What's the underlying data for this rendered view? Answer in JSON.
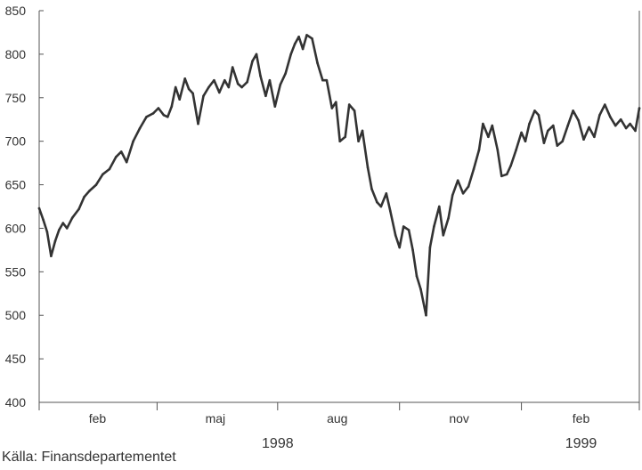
{
  "source_note": "Källa: Finansdepartementet",
  "colors": {
    "line": "#333333",
    "axis": "#555555",
    "text": "#333333"
  },
  "chart_data": {
    "type": "line",
    "title": "",
    "xlabel": "",
    "ylabel": "",
    "ylim": [
      400,
      850
    ],
    "yticks": [
      400,
      450,
      500,
      550,
      600,
      650,
      700,
      750,
      800,
      850
    ],
    "ytick_labels": [
      "400",
      "450",
      "500",
      "550",
      "600",
      "650",
      "700",
      "750",
      "800",
      "850"
    ],
    "xlim": [
      "1998-01-02",
      "1999-03-31"
    ],
    "x_boundaries": [
      "1998-01-02",
      "1998-04-01",
      "1998-07-01",
      "1998-10-01",
      "1999-01-01",
      "1999-03-31"
    ],
    "period_labels": [
      {
        "text": "feb",
        "x": "1998-02-15"
      },
      {
        "text": "maj",
        "x": "1998-05-15"
      },
      {
        "text": "aug",
        "x": "1998-08-15"
      },
      {
        "text": "nov",
        "x": "1998-11-15"
      },
      {
        "text": "feb",
        "x": "1999-02-15"
      }
    ],
    "year_labels": [
      {
        "text": "1998",
        "x": "1998-07-01"
      },
      {
        "text": "1999",
        "x": "1999-02-15"
      }
    ],
    "grid": false,
    "legend": "none",
    "series": [
      {
        "x": [
          "1998-01-02",
          "1998-01-05",
          "1998-01-08",
          "1998-01-11",
          "1998-01-14",
          "1998-01-17",
          "1998-01-20",
          "1998-01-23",
          "1998-01-27",
          "1998-02-01",
          "1998-02-05",
          "1998-02-09",
          "1998-02-14",
          "1998-02-19",
          "1998-02-24",
          "1998-03-01",
          "1998-03-05",
          "1998-03-09",
          "1998-03-14",
          "1998-03-19",
          "1998-03-24",
          "1998-03-29",
          "1998-04-02",
          "1998-04-06",
          "1998-04-09",
          "1998-04-12",
          "1998-04-15",
          "1998-04-18",
          "1998-04-22",
          "1998-04-25",
          "1998-04-28",
          "1998-05-02",
          "1998-05-06",
          "1998-05-10",
          "1998-05-14",
          "1998-05-18",
          "1998-05-22",
          "1998-05-25",
          "1998-05-28",
          "1998-06-01",
          "1998-06-04",
          "1998-06-08",
          "1998-06-12",
          "1998-06-15",
          "1998-06-18",
          "1998-06-22",
          "1998-06-25",
          "1998-06-29",
          "1998-07-03",
          "1998-07-07",
          "1998-07-11",
          "1998-07-14",
          "1998-07-17",
          "1998-07-20",
          "1998-07-23",
          "1998-07-27",
          "1998-07-31",
          "1998-08-04",
          "1998-08-07",
          "1998-08-11",
          "1998-08-14",
          "1998-08-17",
          "1998-08-21",
          "1998-08-24",
          "1998-08-28",
          "1998-08-31",
          "1998-09-03",
          "1998-09-07",
          "1998-09-10",
          "1998-09-14",
          "1998-09-17",
          "1998-09-21",
          "1998-09-24",
          "1998-09-28",
          "1998-10-01",
          "1998-10-04",
          "1998-10-08",
          "1998-10-11",
          "1998-10-14",
          "1998-10-17",
          "1998-10-21",
          "1998-10-24",
          "1998-10-27",
          "1998-10-31",
          "1998-11-03",
          "1998-11-07",
          "1998-11-10",
          "1998-11-14",
          "1998-11-18",
          "1998-11-22",
          "1998-11-26",
          "1998-11-30",
          "1998-12-03",
          "1998-12-07",
          "1998-12-10",
          "1998-12-14",
          "1998-12-17",
          "1998-12-21",
          "1998-12-24",
          "1998-12-28",
          "1999-01-01",
          "1999-01-04",
          "1999-01-07",
          "1999-01-11",
          "1999-01-14",
          "1999-01-18",
          "1999-01-21",
          "1999-01-25",
          "1999-01-28",
          "1999-02-01",
          "1999-02-05",
          "1999-02-09",
          "1999-02-13",
          "1999-02-17",
          "1999-02-21",
          "1999-02-25",
          "1999-03-01",
          "1999-03-05",
          "1999-03-09",
          "1999-03-13",
          "1999-03-17",
          "1999-03-21",
          "1999-03-24",
          "1999-03-28",
          "1999-03-31"
        ],
        "values": [
          623,
          610,
          596,
          568,
          585,
          598,
          606,
          600,
          612,
          622,
          636,
          643,
          650,
          662,
          668,
          682,
          688,
          676,
          700,
          715,
          728,
          732,
          738,
          730,
          728,
          740,
          762,
          748,
          772,
          760,
          755,
          720,
          752,
          762,
          770,
          756,
          770,
          762,
          785,
          766,
          762,
          768,
          792,
          800,
          775,
          752,
          770,
          740,
          765,
          778,
          800,
          812,
          820,
          806,
          822,
          818,
          790,
          770,
          770,
          738,
          745,
          700,
          705,
          742,
          735,
          700,
          712,
          670,
          645,
          630,
          625,
          640,
          620,
          592,
          578,
          602,
          598,
          575,
          545,
          530,
          500,
          578,
          602,
          625,
          592,
          612,
          638,
          655,
          640,
          648,
          668,
          690,
          720,
          705,
          718,
          690,
          660,
          662,
          672,
          690,
          710,
          700,
          720,
          735,
          730,
          698,
          712,
          718,
          695,
          700,
          718,
          735,
          724,
          702,
          716,
          705,
          730,
          742,
          728,
          718,
          725,
          715,
          720,
          712,
          738
        ]
      }
    ]
  }
}
